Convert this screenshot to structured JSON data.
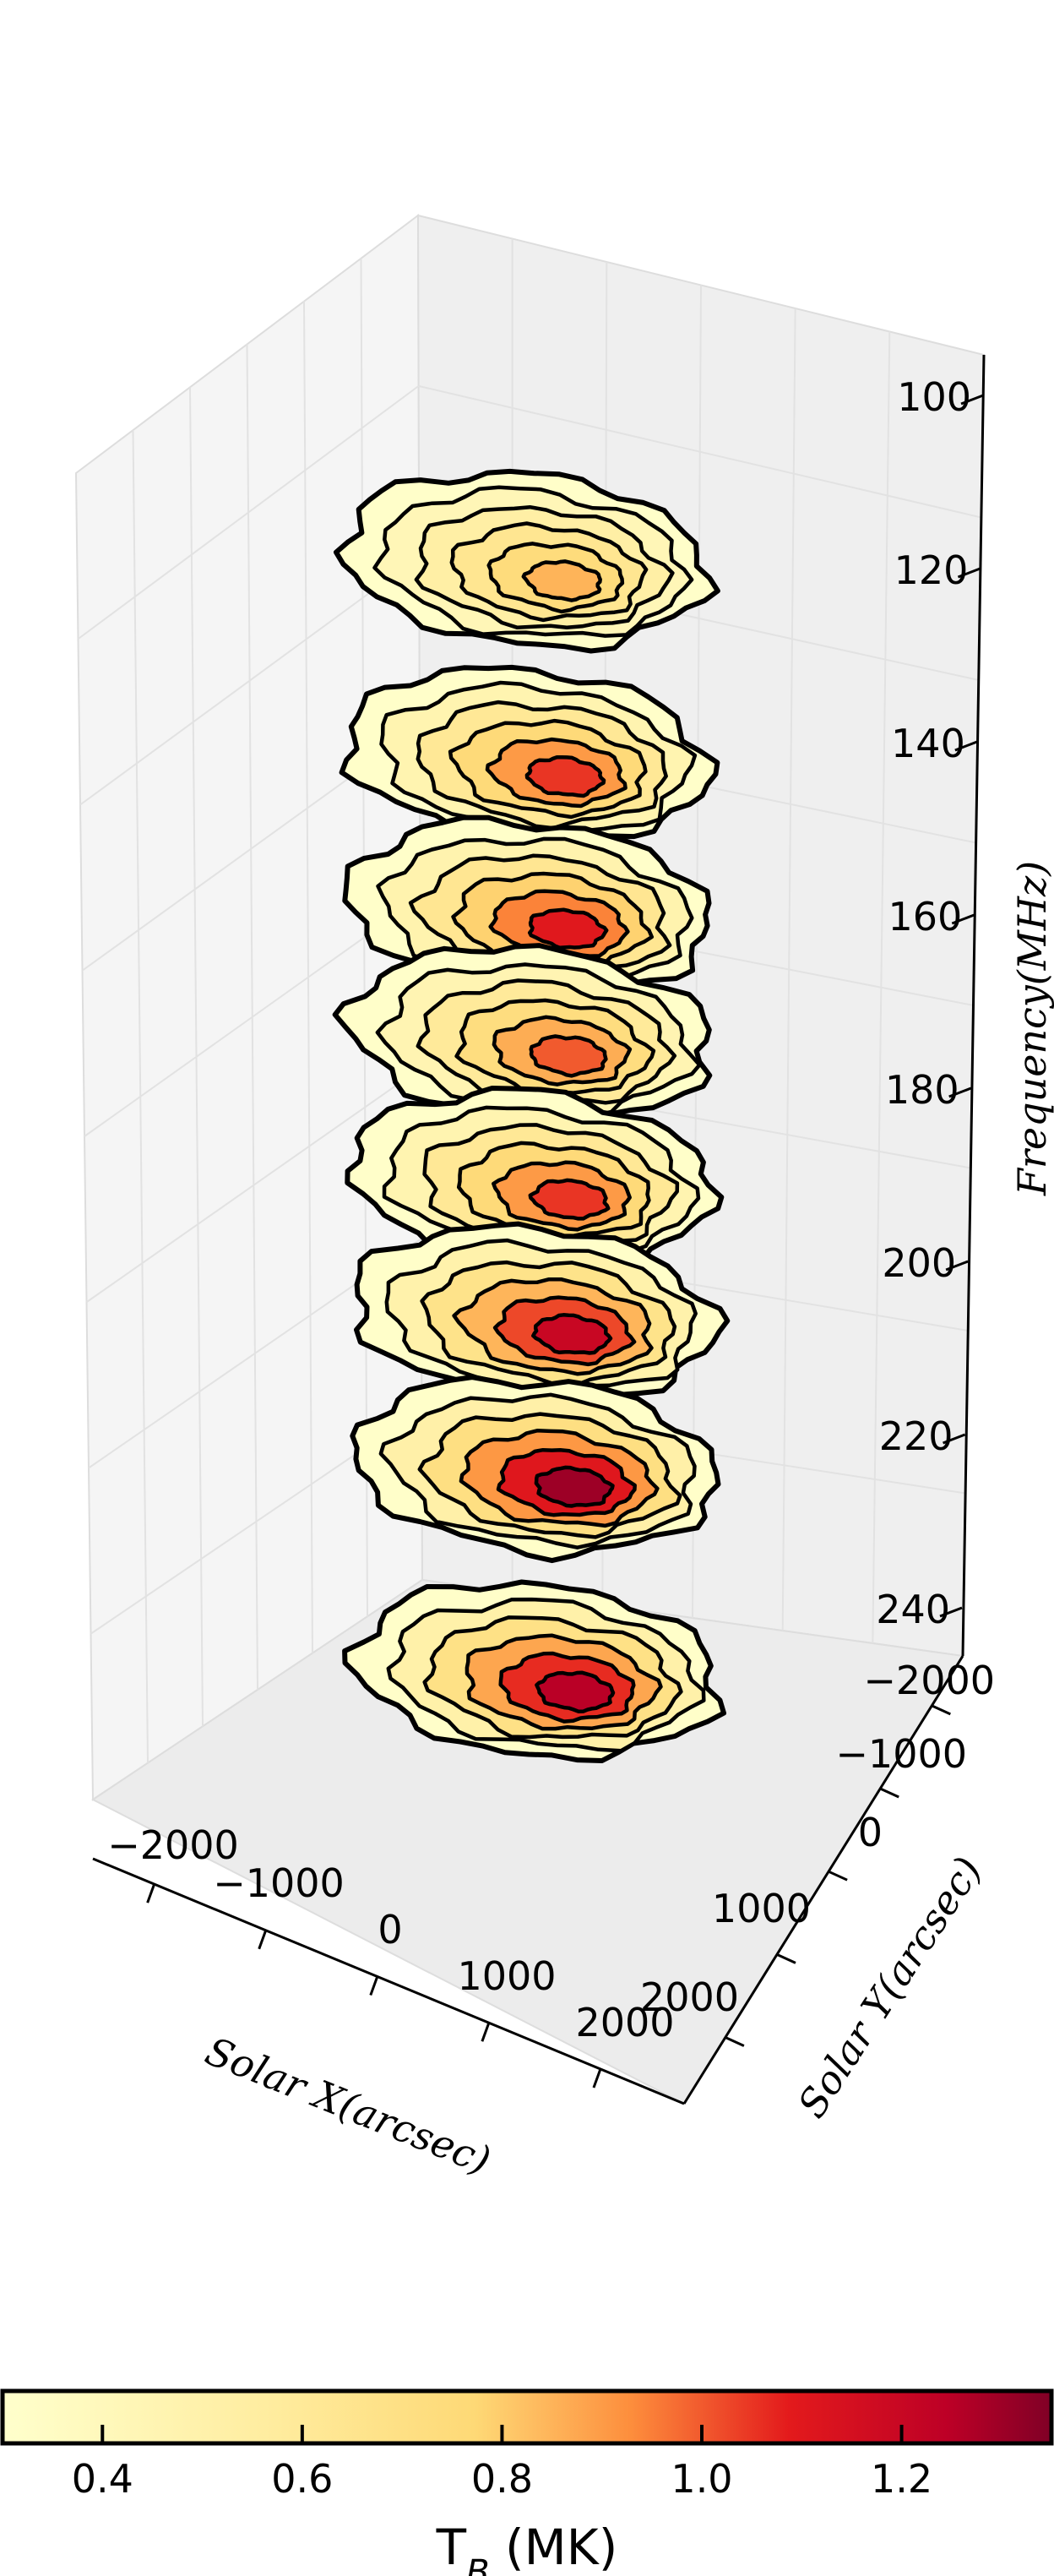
{
  "chart_data": {
    "type": "3d-contour-stack",
    "xlabel": "Solar X(arcsec)",
    "ylabel": "Solar Y(arcsec)",
    "zlabel": "Frequency(MHz)",
    "x_ticks": [
      "−2000",
      "−1000",
      "0",
      "1000",
      "2000"
    ],
    "y_ticks": [
      "−2000",
      "−1000",
      "0",
      "1000",
      "2000"
    ],
    "z_ticks": [
      "100",
      "120",
      "140",
      "160",
      "180",
      "200",
      "220",
      "240"
    ],
    "xlim": [
      -2000,
      2000
    ],
    "ylim": [
      -2000,
      2000
    ],
    "zlim": [
      100,
      240
    ],
    "grid": true,
    "colormap": "YlOrRd",
    "frequency_slices_mhz": [
      109,
      132,
      150,
      165,
      182,
      198,
      216,
      240
    ],
    "slice_peak_tb_mk": [
      0.85,
      1.05,
      1.1,
      1.0,
      1.05,
      1.2,
      1.3,
      1.25
    ],
    "colorbar": {
      "label": "T_B (MK)",
      "ticks": [
        "0.4",
        "0.6",
        "0.8",
        "1.0",
        "1.2"
      ],
      "tick_values": [
        0.4,
        0.6,
        0.8,
        1.0,
        1.2
      ],
      "range": [
        0.3,
        1.35
      ]
    }
  },
  "colors": {
    "cmap_low": "#ffffcc",
    "cmap_mid": "#fd8d3c",
    "cmap_high": "#800026",
    "grid": "#e5e5e5",
    "pane": "#f2f2f2"
  }
}
